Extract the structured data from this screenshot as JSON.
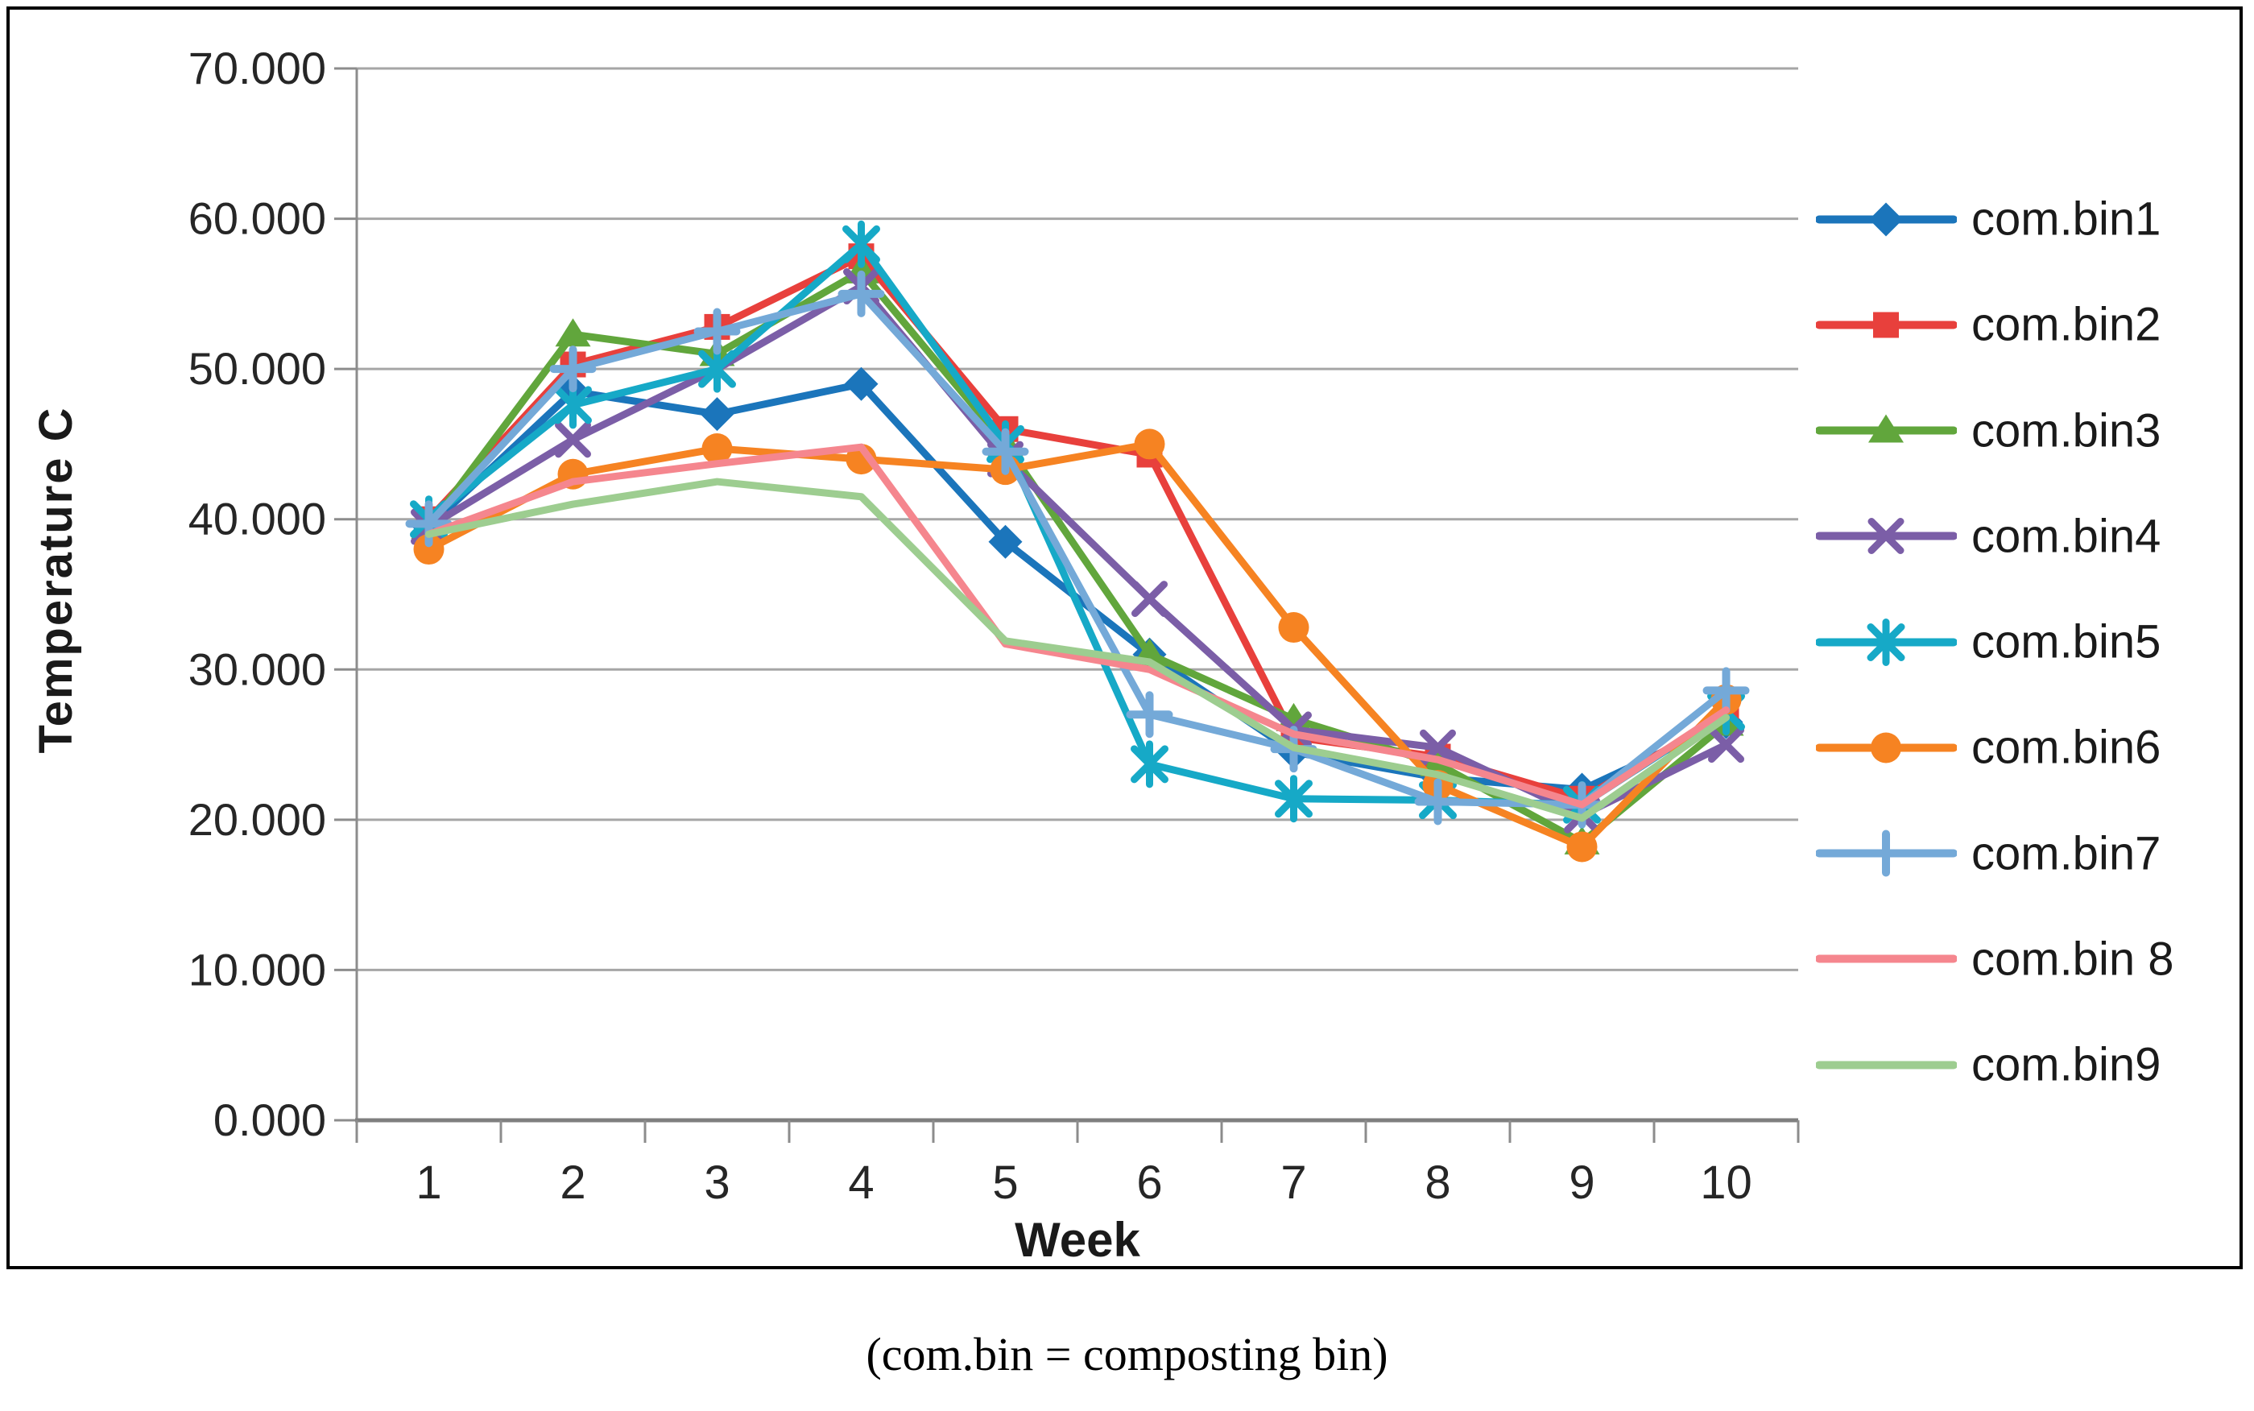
{
  "figure": {
    "caption": "(com.bin = composting bin)"
  },
  "chart_data": {
    "type": "line",
    "title": "",
    "xlabel": "Week",
    "ylabel": "Temperature C",
    "x_categories": [
      "1",
      "2",
      "3",
      "4",
      "5",
      "6",
      "7",
      "8",
      "9",
      "10"
    ],
    "ylim": [
      0,
      70
    ],
    "ytick_step": 10,
    "ytick_labels": [
      "0.000",
      "10.000",
      "20.000",
      "30.000",
      "40.000",
      "50.000",
      "60.000",
      "70.000"
    ],
    "grid": true,
    "legend_position": "right",
    "axis_colors": {
      "grid": "#a6a6a6",
      "axis": "#8c8c8c",
      "tick_text": "#262626"
    },
    "series": [
      {
        "name": "com.bin1",
        "color": "#1B75BB",
        "marker": "diamond",
        "values": [
          39.5,
          48.5,
          47.0,
          49.0,
          38.5,
          31.0,
          24.5,
          22.8,
          22.0,
          26.5
        ]
      },
      {
        "name": "com.bin2",
        "color": "#E8403C",
        "marker": "square",
        "values": [
          40.0,
          50.3,
          52.8,
          57.5,
          46.0,
          44.3,
          25.5,
          24.2,
          21.4,
          27.0
        ]
      },
      {
        "name": "com.bin3",
        "color": "#61A63C",
        "marker": "triangle",
        "values": [
          39.5,
          52.3,
          51.0,
          56.5,
          45.0,
          31.0,
          26.7,
          23.7,
          18.5,
          26.4
        ]
      },
      {
        "name": "com.bin4",
        "color": "#7B5EA7",
        "marker": "x",
        "values": [
          39.5,
          45.3,
          50.0,
          55.5,
          44.0,
          34.7,
          26.0,
          24.8,
          20.3,
          25.0
        ]
      },
      {
        "name": "com.bin5",
        "color": "#16A9C7",
        "marker": "asterisk",
        "values": [
          40.0,
          47.6,
          50.0,
          58.3,
          45.0,
          23.7,
          21.4,
          21.3,
          21.0,
          27.2
        ]
      },
      {
        "name": "com.bin6",
        "color": "#F68322",
        "marker": "circle",
        "values": [
          38.0,
          43.0,
          44.7,
          44.0,
          43.3,
          45.0,
          32.8,
          22.3,
          18.2,
          28.0
        ]
      },
      {
        "name": "com.bin7",
        "color": "#74A9D8",
        "marker": "plus",
        "values": [
          39.7,
          50.0,
          52.5,
          55.0,
          44.5,
          27.0,
          24.7,
          21.2,
          21.0,
          28.6
        ]
      },
      {
        "name": "com.bin 8",
        "color": "#F5868E",
        "marker": "none",
        "values": [
          39.0,
          42.5,
          43.7,
          44.8,
          31.7,
          30.0,
          25.7,
          24.0,
          21.0,
          27.3
        ]
      },
      {
        "name": "com.bin9",
        "color": "#9DCD90",
        "marker": "none",
        "values": [
          39.0,
          41.0,
          42.5,
          41.5,
          31.9,
          30.5,
          24.8,
          23.0,
          20.1,
          26.8
        ]
      }
    ]
  }
}
